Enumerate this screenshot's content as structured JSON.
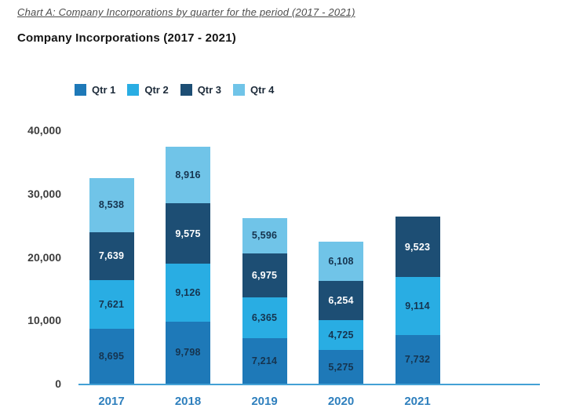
{
  "page": {
    "title": "Chart A: Company Incorporations by quarter for the period (2017 - 2021)",
    "subtitle": "Company Incorporations (2017 - 2021)"
  },
  "chart_data": {
    "type": "bar",
    "stacked": true,
    "title": "Company Incorporations (2017 - 2021)",
    "categories": [
      "2017",
      "2018",
      "2019",
      "2020",
      "2021"
    ],
    "series": [
      {
        "name": "Qtr 1",
        "color": "#1e79b8",
        "label_color": "#16344f",
        "values": [
          8695,
          9798,
          7214,
          5275,
          7732
        ]
      },
      {
        "name": "Qtr 2",
        "color": "#29ade3",
        "label_color": "#16344f",
        "values": [
          7621,
          9126,
          6365,
          4725,
          9114
        ]
      },
      {
        "name": "Qtr 3",
        "color": "#1d4e74",
        "label_color": "#ffffff",
        "values": [
          7639,
          9575,
          6975,
          6254,
          9523
        ]
      },
      {
        "name": "Qtr 4",
        "color": "#70c4e8",
        "label_color": "#16344f",
        "values": [
          8538,
          8916,
          5596,
          6108,
          null
        ]
      }
    ],
    "y_axis": {
      "tick_labels": [
        "0",
        "10,000",
        "20,000",
        "30,000",
        "40,000"
      ],
      "tick_values": [
        0,
        10000,
        20000,
        30000,
        40000
      ],
      "max": 40000
    },
    "legend_position": "top",
    "grid": false,
    "axis_line_color": "#44a1d5",
    "category_label_color": "#2e7fbd"
  }
}
